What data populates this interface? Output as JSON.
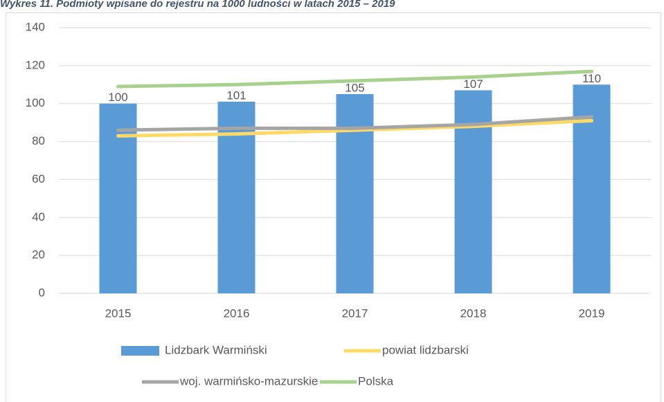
{
  "chart_data": {
    "type": "bar",
    "title": "Wykres 11. Podmioty wpisane do rejestru na 1000 ludności w latach 2015 – 2019",
    "categories": [
      "2015",
      "2016",
      "2017",
      "2018",
      "2019"
    ],
    "series": [
      {
        "name": "Lidzbark Warmiński",
        "type": "bar",
        "color": "#5b9bd5",
        "values": [
          100,
          101,
          105,
          107,
          110
        ]
      },
      {
        "name": "powiat lidzbarski",
        "type": "line",
        "color": "#ffd966",
        "values": [
          83,
          84,
          86,
          88,
          91
        ]
      },
      {
        "name": "woj. warmińsko-mazurskie",
        "type": "line",
        "color": "#a5a5a5",
        "values": [
          86,
          87,
          87,
          89,
          93
        ]
      },
      {
        "name": "Polska",
        "type": "line",
        "color": "#a9d18e",
        "values": [
          109,
          110,
          112,
          114,
          117
        ]
      }
    ],
    "ylim": [
      0,
      140
    ],
    "yticks": [
      0,
      20,
      40,
      60,
      80,
      100,
      120,
      140
    ],
    "grid": true,
    "legend": "bottom"
  }
}
